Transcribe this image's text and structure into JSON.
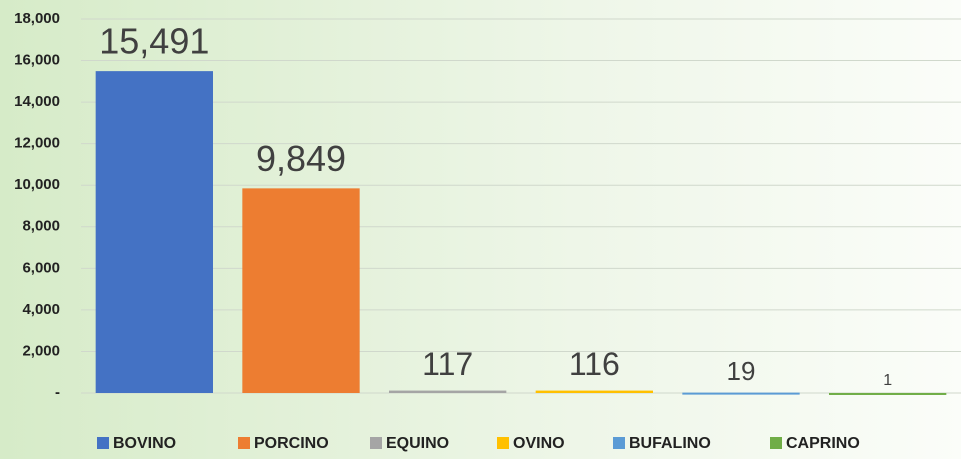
{
  "chart_data": {
    "type": "bar",
    "series": [
      {
        "name": "BOVINO",
        "color": "#4472c4",
        "values": [
          15491
        ],
        "value_labels": [
          "15,491"
        ]
      },
      {
        "name": "PORCINO",
        "color": "#ed7d31",
        "values": [
          9849
        ],
        "value_labels": [
          "9,849"
        ]
      },
      {
        "name": "EQUINO",
        "color": "#a5a5a5",
        "values": [
          117
        ]
      },
      {
        "name": "OVINO",
        "color": "#ffc000",
        "values": [
          116
        ]
      },
      {
        "name": "BUFALINO",
        "color": "#5b9bd5",
        "values": [
          19
        ]
      },
      {
        "name": "CAPRINO",
        "color": "#70ad47",
        "values": [
          1
        ]
      }
    ],
    "ylim": [
      0,
      18000
    ],
    "yticks": [
      {
        "value": 0,
        "label": "-"
      },
      {
        "value": 2000,
        "label": "2,000"
      },
      {
        "value": 4000,
        "label": "4,000"
      },
      {
        "value": 6000,
        "label": "6,000"
      },
      {
        "value": 8000,
        "label": "8,000"
      },
      {
        "value": 10000,
        "label": "10,000"
      },
      {
        "value": 12000,
        "label": "12,000"
      },
      {
        "value": 14000,
        "label": "14,000"
      },
      {
        "value": 16000,
        "label": "16,000"
      },
      {
        "value": 18000,
        "label": "18,000"
      }
    ],
    "grid": true,
    "legend": "bottom"
  }
}
